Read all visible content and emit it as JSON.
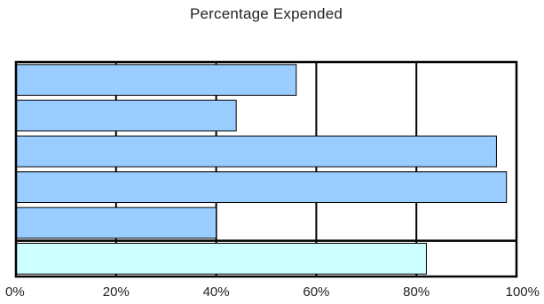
{
  "chart_data": {
    "type": "bar",
    "orientation": "horizontal",
    "title": "Percentage Expended",
    "xlabel": "",
    "ylabel": "",
    "xlim": [
      0,
      100
    ],
    "x_ticks": [
      "0%",
      "20%",
      "40%",
      "60%",
      "80%",
      "100%"
    ],
    "grid": "vertical-major",
    "legend": "none",
    "values": [
      56,
      44,
      96,
      98,
      40,
      82
    ],
    "bar_colors": [
      "#99ccff",
      "#99ccff",
      "#99ccff",
      "#99ccff",
      "#99ccff",
      "#ccffff"
    ],
    "separator_before_last": true
  }
}
